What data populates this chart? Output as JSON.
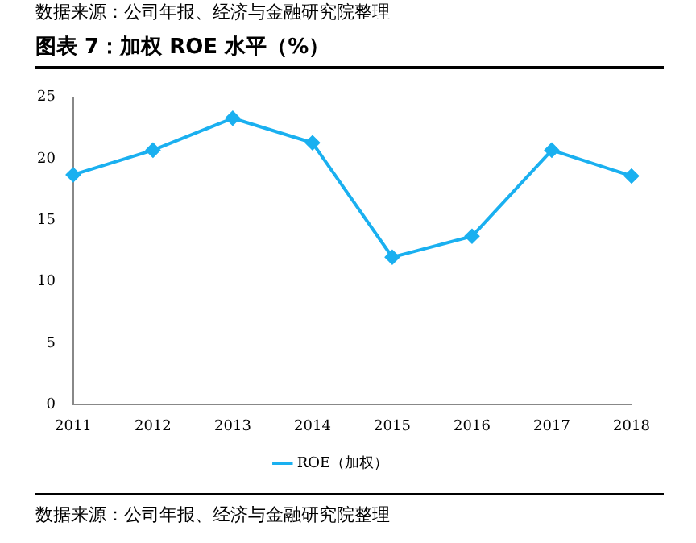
{
  "chart_data": {
    "type": "line",
    "title": "图表 7：加权 ROE 水平（%）",
    "categories": [
      "2011",
      "2012",
      "2013",
      "2014",
      "2015",
      "2016",
      "2017",
      "2018"
    ],
    "series": [
      {
        "name": "ROE（加权）",
        "color": "#1ab0f0",
        "values": [
          18.7,
          20.7,
          23.3,
          21.3,
          12.0,
          13.7,
          20.7,
          18.6
        ]
      }
    ],
    "ylim": [
      0,
      25
    ],
    "yticks": [
      0,
      5,
      10,
      15,
      20,
      25
    ],
    "grid": false,
    "legend": "bottom",
    "marker": "diamond",
    "line_style": "solid",
    "annotations": [
      "数据来源：公司年报、经济与金融研究院整理",
      "数据来源：公司年报、经济与金融研究院整理"
    ]
  }
}
